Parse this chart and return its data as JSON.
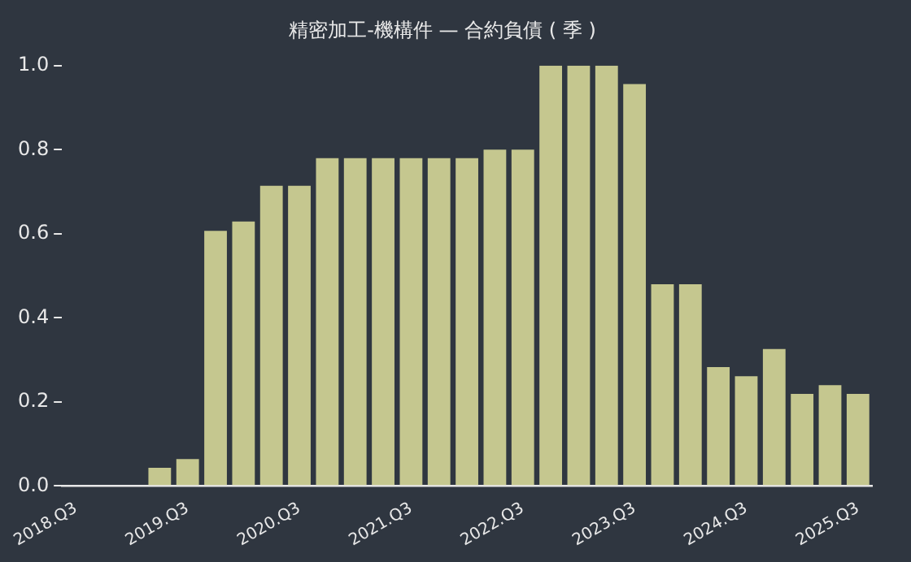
{
  "chart_data": {
    "type": "bar",
    "title": "精密加工-機構件 — 合約負債 ( 季 )",
    "categories": [
      "2018.Q3",
      null,
      null,
      null,
      "2019.Q3",
      null,
      null,
      null,
      "2020.Q3",
      null,
      null,
      null,
      "2021.Q3",
      null,
      null,
      null,
      "2022.Q3",
      null,
      null,
      null,
      "2023.Q3",
      null,
      null,
      null,
      "2024.Q3",
      null,
      null,
      null,
      "2025.Q3"
    ],
    "values": [
      null,
      null,
      null,
      0.043,
      0.064,
      0.607,
      0.629,
      0.714,
      0.714,
      0.78,
      0.78,
      0.78,
      0.78,
      0.78,
      0.78,
      0.8,
      0.8,
      1.0,
      1.0,
      1.0,
      0.956,
      0.48,
      0.48,
      0.283,
      0.261,
      0.326,
      0.219,
      0.24,
      0.219
    ],
    "color": "#c5c78f",
    "ylim": [
      0,
      1
    ],
    "yticks": [
      {
        "value": 0,
        "label": "0.0"
      },
      0.2,
      0.4,
      0.6,
      0.8,
      {
        "value": 1,
        "label": "1.0"
      }
    ],
    "grid": false,
    "legend": false
  }
}
